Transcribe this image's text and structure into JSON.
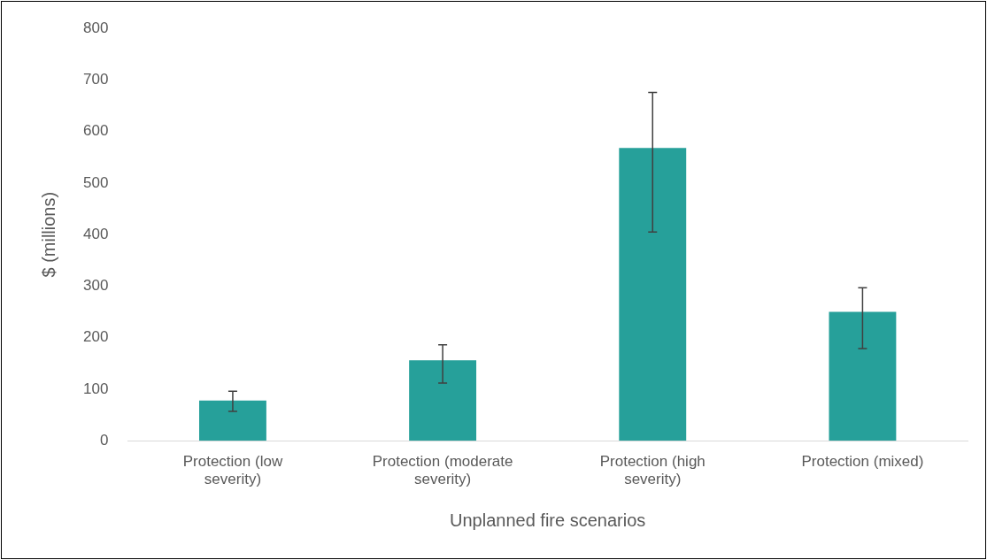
{
  "chart_data": {
    "type": "bar",
    "xlabel": "Unplanned fire scenarios",
    "ylabel": "$ (millions)",
    "categories": [
      "Protection (low severity)",
      "Protection (moderate severity)",
      "Protection (high severity)",
      "Protection (mixed)"
    ],
    "values": [
      78,
      156,
      568,
      250
    ],
    "color": "#26a09a",
    "errors": [
      [
        57,
        96
      ],
      [
        112,
        186
      ],
      [
        405,
        676
      ],
      [
        179,
        297
      ]
    ],
    "ylim": [
      0,
      800
    ],
    "yticks": [
      0,
      100,
      200,
      300,
      400,
      500,
      600,
      700,
      800
    ],
    "grid": false,
    "legend": false
  }
}
